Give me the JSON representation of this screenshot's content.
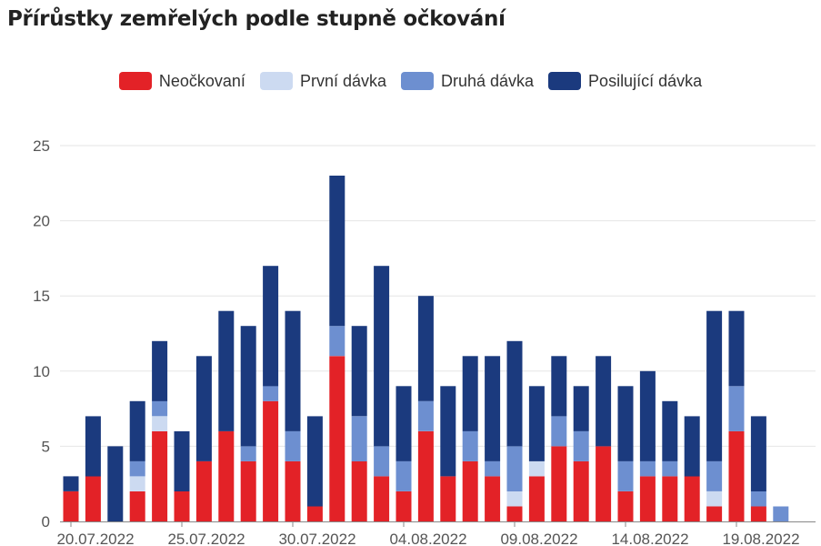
{
  "title": "Přírůstky zemřelých podle stupně očkování",
  "colors": {
    "neockovani": "#e32227",
    "prvni": "#ccdaf1",
    "druha": "#6d8fd0",
    "posilujici": "#1b3a7e",
    "grid": "#e6e6e6",
    "axis": "#888888"
  },
  "chart_data": {
    "type": "bar",
    "stacked": true,
    "legend_position": "top-center",
    "grid": true,
    "ylim": [
      0,
      25
    ],
    "yticks": [
      0,
      5,
      10,
      15,
      20,
      25
    ],
    "x_tick_labels": [
      "20.07.2022",
      "25.07.2022",
      "30.07.2022",
      "04.08.2022",
      "09.08.2022",
      "14.08.2022",
      "19.08.2022"
    ],
    "x_tick_every": 5,
    "categories": [
      "20.07.2022",
      "21.07.2022",
      "22.07.2022",
      "23.07.2022",
      "24.07.2022",
      "25.07.2022",
      "26.07.2022",
      "27.07.2022",
      "28.07.2022",
      "29.07.2022",
      "30.07.2022",
      "31.07.2022",
      "01.08.2022",
      "02.08.2022",
      "03.08.2022",
      "04.08.2022",
      "05.08.2022",
      "06.08.2022",
      "07.08.2022",
      "08.08.2022",
      "09.08.2022",
      "10.08.2022",
      "11.08.2022",
      "12.08.2022",
      "13.08.2022",
      "14.08.2022",
      "15.08.2022",
      "16.08.2022",
      "17.08.2022",
      "18.08.2022",
      "19.08.2022",
      "20.08.2022",
      "21.08.2022"
    ],
    "series": [
      {
        "name": "Neočkovaní",
        "values": [
          2,
          3,
          0,
          2,
          6,
          2,
          4,
          6,
          4,
          8,
          4,
          1,
          11,
          4,
          3,
          2,
          6,
          3,
          4,
          3,
          1,
          3,
          5,
          4,
          5,
          2,
          3,
          3,
          3,
          1,
          6,
          1,
          0
        ]
      },
      {
        "name": "První dávka",
        "values": [
          0,
          0,
          0,
          1,
          1,
          0,
          0,
          0,
          0,
          0,
          0,
          0,
          0,
          0,
          0,
          0,
          0,
          0,
          0,
          0,
          1,
          1,
          0,
          0,
          0,
          0,
          0,
          0,
          0,
          1,
          0,
          0,
          0
        ]
      },
      {
        "name": "Druhá dávka",
        "values": [
          0,
          0,
          0,
          1,
          1,
          0,
          0,
          0,
          1,
          1,
          2,
          0,
          2,
          3,
          2,
          2,
          2,
          0,
          2,
          1,
          3,
          0,
          2,
          2,
          0,
          2,
          1,
          1,
          0,
          2,
          3,
          1,
          1
        ]
      },
      {
        "name": "Posilující dávka",
        "values": [
          1,
          4,
          5,
          4,
          4,
          4,
          7,
          8,
          8,
          8,
          8,
          6,
          10,
          6,
          12,
          5,
          7,
          6,
          5,
          7,
          7,
          5,
          4,
          3,
          6,
          5,
          6,
          4,
          4,
          10,
          5,
          5,
          0
        ]
      }
    ]
  }
}
